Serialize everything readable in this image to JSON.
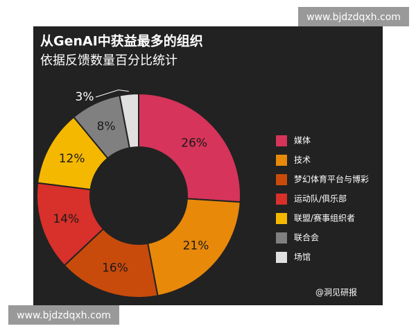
{
  "chart_data": {
    "type": "donut",
    "title": "从GenAI中获益最多的组织",
    "subtitle": "依据反馈数量百分比统计",
    "categories": [
      "媒体",
      "技术",
      "梦幻体育平台与博彩",
      "运动队/俱乐部",
      "联盟/赛事组织者",
      "联合会",
      "场馆"
    ],
    "values": [
      26,
      21,
      16,
      14,
      12,
      8,
      3
    ],
    "value_labels": [
      "26%",
      "21%",
      "16%",
      "14%",
      "12%",
      "8%",
      "3%"
    ],
    "colors": [
      "#d6345a",
      "#e8890a",
      "#c84b0c",
      "#d8302a",
      "#f5b800",
      "#808080",
      "#e0e0e0"
    ],
    "legend": "right"
  },
  "source": "@洞见研报",
  "watermarks": [
    "www.bjdzdqxh.com",
    "www.bjdzdqxh.com"
  ]
}
